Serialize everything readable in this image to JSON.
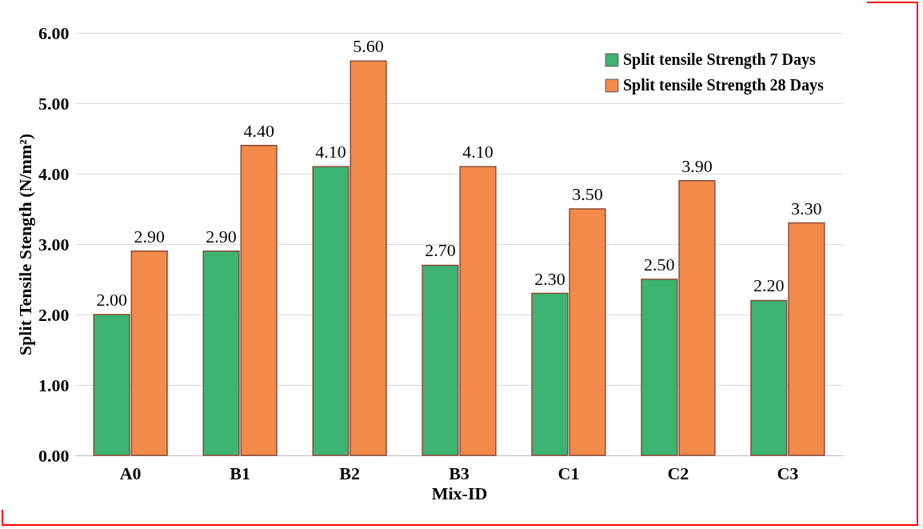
{
  "chart_data": {
    "type": "bar",
    "xlabel": "Mix-ID",
    "ylabel": "Split Tensile Stength (N/mm²)",
    "categories": [
      "A0",
      "B1",
      "B2",
      "B3",
      "C1",
      "C2",
      "C3"
    ],
    "series": [
      {
        "name": "Split tensile Strength 7 Days",
        "color": "#3cb371",
        "values": [
          2.0,
          2.9,
          4.1,
          2.7,
          2.3,
          2.5,
          2.2
        ],
        "value_labels": [
          "2.00",
          "2.90",
          "4.10",
          "2.70",
          "2.30",
          "2.50",
          "2.20"
        ]
      },
      {
        "name": "Split tensile Strength 28 Days",
        "color": "#f28a4a",
        "values": [
          2.9,
          4.4,
          5.6,
          4.1,
          3.5,
          3.9,
          3.3
        ],
        "value_labels": [
          "2.90",
          "4.40",
          "5.60",
          "4.10",
          "3.50",
          "3.90",
          "3.30"
        ]
      }
    ],
    "ylim": [
      0,
      6
    ],
    "yticks": [
      {
        "value": 0,
        "label": "0.00"
      },
      {
        "value": 1,
        "label": "1.00"
      },
      {
        "value": 2,
        "label": "2.00"
      },
      {
        "value": 3,
        "label": "3.00"
      },
      {
        "value": 4,
        "label": "4.00"
      },
      {
        "value": 5,
        "label": "5.00"
      },
      {
        "value": 6,
        "label": "6.00"
      }
    ],
    "grid": "y",
    "legend": "top right"
  }
}
